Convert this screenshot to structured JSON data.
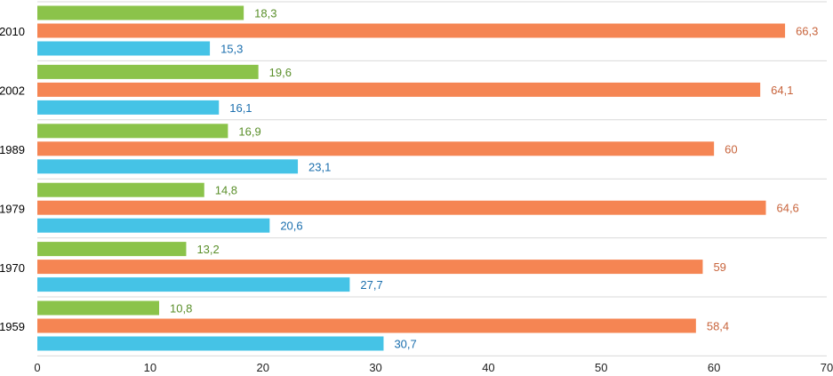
{
  "chart_data": {
    "type": "bar",
    "orientation": "horizontal",
    "categories": [
      "2010",
      "2002",
      "1989",
      "1979",
      "1970",
      "1959"
    ],
    "series": [
      {
        "values": [
          18.3,
          19.6,
          16.9,
          14.8,
          13.2,
          10.8
        ],
        "labels": [
          "18,3",
          "19,6",
          "16,9",
          "14,8",
          "13,2",
          "10,8"
        ],
        "color": "#8bc34a",
        "label_color": "#5a8f2a"
      },
      {
        "values": [
          66.3,
          64.1,
          60,
          64.6,
          59,
          58.4
        ],
        "labels": [
          "66,3",
          "64,1",
          "60",
          "64,6",
          "59",
          "58,4"
        ],
        "color": "#f58553",
        "label_color": "#c8643c"
      },
      {
        "values": [
          15.3,
          16.1,
          23.1,
          20.6,
          27.7,
          30.7
        ],
        "labels": [
          "15,3",
          "16,1",
          "23,1",
          "20,6",
          "27,7",
          "30,7"
        ],
        "color": "#45c3e6",
        "label_color": "#1b6fae"
      }
    ],
    "xlim": [
      0,
      70
    ],
    "xticks": [
      "0",
      "10",
      "20",
      "30",
      "40",
      "50",
      "60",
      "70"
    ],
    "title": "",
    "xlabel": "",
    "ylabel": "",
    "grid": "horizontal category separators",
    "legend": "none"
  }
}
